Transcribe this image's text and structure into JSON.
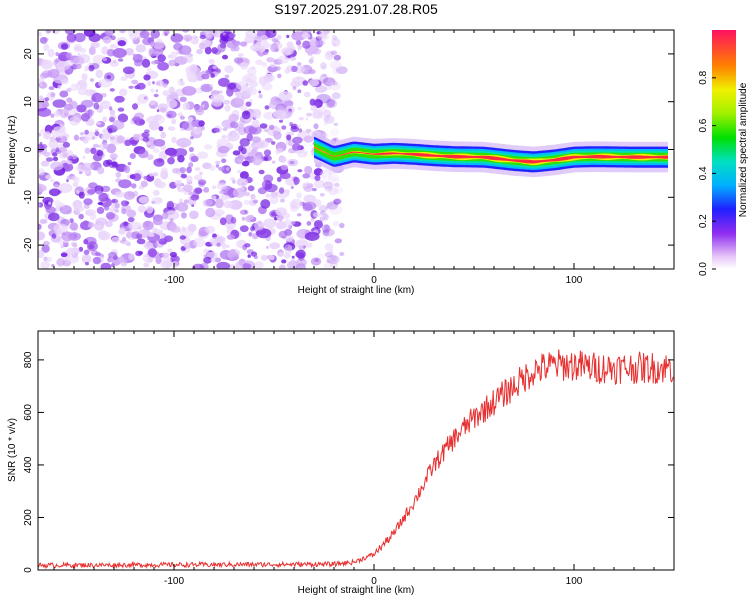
{
  "figure": {
    "title": "S197.2025.291.07.28.R05"
  },
  "chart_data": [
    {
      "type": "heatmap",
      "xlabel": "Height of straight line (km)",
      "ylabel": "Frequency (Hz)",
      "xlim": [
        -168,
        150
      ],
      "ylim": [
        -25,
        25
      ],
      "xticks": [
        -100,
        0,
        100
      ],
      "yticks": [
        -20,
        -10,
        0,
        10,
        20
      ],
      "noise_region_x": [
        -168,
        -22
      ],
      "signal_ridge": {
        "x_start": -30,
        "x_end": 148,
        "points": [
          [
            -30,
            0.5
          ],
          [
            -20,
            -1.5
          ],
          [
            -10,
            -0.5
          ],
          [
            0,
            -1.0
          ],
          [
            10,
            -0.8
          ],
          [
            20,
            -1.0
          ],
          [
            30,
            -1.3
          ],
          [
            40,
            -1.5
          ],
          [
            55,
            -1.6
          ],
          [
            70,
            -2.3
          ],
          [
            80,
            -2.6
          ],
          [
            90,
            -2.2
          ],
          [
            100,
            -1.6
          ],
          [
            110,
            -1.5
          ],
          [
            130,
            -1.6
          ],
          [
            148,
            -1.6
          ]
        ]
      },
      "colorbar": {
        "label": "Normalized spectral amplitude",
        "range": [
          0,
          1
        ],
        "ticks": [
          "0.0",
          "0.2",
          "0.4",
          "0.6",
          "0.8"
        ],
        "tick_values": [
          0.0,
          0.2,
          0.4,
          0.6,
          0.8
        ]
      }
    },
    {
      "type": "line",
      "xlabel": "Height of straight line (km)",
      "ylabel": "SNR (10 * v/v)",
      "xlim": [
        -168,
        150
      ],
      "ylim": [
        0,
        910
      ],
      "xticks": [
        -100,
        0,
        100
      ],
      "yticks": [
        0,
        200,
        400,
        600,
        800
      ],
      "line_color": "#e83030",
      "series": [
        {
          "x": [
            -168,
            -20,
            -10,
            0,
            10,
            20,
            30,
            40,
            50,
            60,
            70,
            80,
            90,
            100,
            110,
            120,
            130,
            140,
            150
          ],
          "y": [
            18,
            22,
            30,
            60,
            140,
            260,
            400,
            500,
            580,
            640,
            700,
            760,
            780,
            780,
            770,
            770,
            770,
            770,
            770
          ]
        }
      ]
    }
  ]
}
